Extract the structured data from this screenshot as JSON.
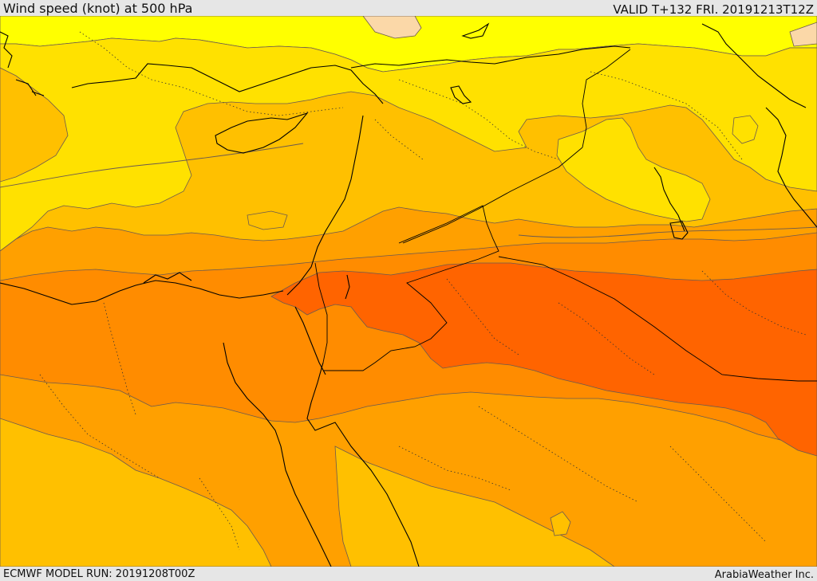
{
  "header": {
    "title": "Wind speed (knot) at 500 hPa",
    "valid_time": "VALID T+132 FRI. 20191213T12Z"
  },
  "footer": {
    "model_run": "ECMWF MODEL RUN: 20191208T00Z",
    "credit": "ArabiaWeather Inc."
  },
  "map": {
    "colors": {
      "band_palest": "#fbd8a8",
      "band_1": "#ffff00",
      "band_2": "#ffe100",
      "band_3": "#ffc000",
      "band_4": "#ffa000",
      "band_5": "#ff8c00",
      "band_6": "#ff6400",
      "contour_line": "#6b5a50",
      "coastline": "#000000"
    }
  }
}
